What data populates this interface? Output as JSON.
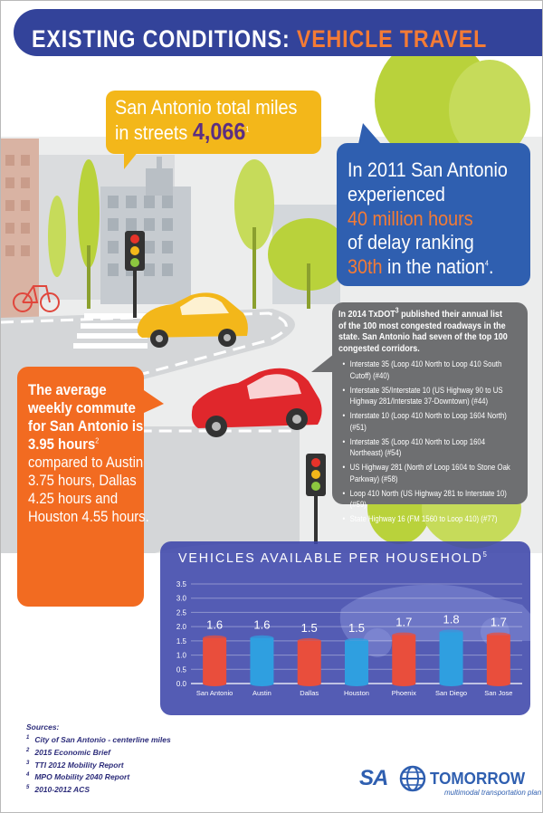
{
  "header": {
    "title_part1": "EXISTING CONDITIONS: ",
    "title_part2": "VEHICLE TRAVEL"
  },
  "callout_miles": {
    "line1": "San Antonio total miles",
    "line2_prefix": "in streets ",
    "value": "4,066",
    "ref": "1"
  },
  "callout_delay": {
    "line1": "In 2011 San Antonio",
    "line2": "experienced",
    "line3": "40 million hours",
    "line4": "of delay ranking",
    "line5_accent": "30th",
    "line5_rest": " in the nation",
    "ref": "4",
    "period": "."
  },
  "callout_corridors": {
    "intro_a": "In 2014 TxDOT",
    "intro_ref": "3",
    "intro_b": " published their annual list of the 100 most congested roadways in the state. San Antonio had seven of the top 100 congested corridors.",
    "items": [
      "Interstate 35 (Loop 410 North to Loop 410 South Cutoff) (#40)",
      "Interstate 35/Interstate 10 (US Highway 90 to US Highway 281/Interstate 37-Downtown) (#44)",
      "Interstate 10 (Loop 410 North to Loop 1604 North) (#51)",
      "Interstate 35 (Loop 410 North to Loop 1604 Northeast) (#54)",
      "US Highway 281 (North of Loop 1604 to Stone Oak Parkway) (#58)",
      "Loop 410 North (US Highway 281 to Interstate 10) (#59)",
      "State Highway 16 (FM 1560 to Loop 410) (#77)"
    ]
  },
  "callout_commute": {
    "bold1": "The average weekly commute for San Antonio is 3.95 hours",
    "ref": "2",
    "rest": " compared to Austin 3.75 hours, Dallas 4.25 hours and Houston 4.55 hours."
  },
  "chart_title": "VEHICLES AVAILABLE PER HOUSEHOLD",
  "chart_title_ref": "5",
  "chart_data": {
    "type": "bar",
    "title": "VEHICLES AVAILABLE PER HOUSEHOLD",
    "categories": [
      "San Antonio",
      "Austin",
      "Dallas",
      "Houston",
      "Phoenix",
      "San Diego",
      "San Jose"
    ],
    "values": [
      1.6,
      1.6,
      1.5,
      1.5,
      1.7,
      1.8,
      1.7
    ],
    "value_labels": [
      "1.6",
      "1.6",
      "1.5",
      "1.5",
      "1.7",
      "1.8",
      "1.7"
    ],
    "bar_colors": [
      "#e94e3c",
      "#2f9fe0",
      "#e94e3c",
      "#2f9fe0",
      "#e94e3c",
      "#2f9fe0",
      "#e94e3c"
    ],
    "ylim": [
      0,
      3.5
    ],
    "yticks": [
      "0.0",
      "0.5",
      "1.0",
      "1.5",
      "2.0",
      "2.5",
      "3.0",
      "3.5"
    ],
    "grid": true,
    "xlabel": "",
    "ylabel": ""
  },
  "sources": {
    "title": "Sources:",
    "items": [
      {
        "n": "1",
        "text": "City of San Antonio  - centerline miles"
      },
      {
        "n": "2",
        "text": "2015 Economic Brief"
      },
      {
        "n": "3",
        "text": "TTI 2012 Mobility Report"
      },
      {
        "n": "4",
        "text": "MPO Mobility 2040 Report"
      },
      {
        "n": "5",
        "text": "2010-2012 ACS"
      }
    ]
  },
  "logo": {
    "sa": "SA",
    "name": "TOMORROW",
    "tagline": "multimodal transportation plan"
  },
  "colors": {
    "header_blue": "#33439a",
    "accent_orange": "#f47b35",
    "callout_yellow": "#f3b71a",
    "callout_blue": "#2f5fb0",
    "callout_gray": "#6e6f71",
    "callout_orange": "#f26b21",
    "miles_purple": "#5b2e82"
  }
}
